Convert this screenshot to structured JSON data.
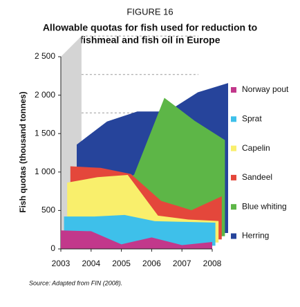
{
  "chart_data": {
    "type": "area3d",
    "figure_label": "FIGURE 16",
    "title": [
      "Allowable quotas for fish used for reduction to",
      "fishmeal and fish oil in Europe"
    ],
    "y_label": "Fish quotas (thousand tonnes)",
    "source": "Source: Adapted from FIN (2008).",
    "x": [
      2003,
      2004,
      2005,
      2006,
      2007,
      2008
    ],
    "xlim": [
      2003,
      2008
    ],
    "xticks": [
      2003,
      2004,
      2005,
      2006,
      2007,
      2008
    ],
    "ylim": [
      0,
      2500
    ],
    "yticks": [
      0,
      500,
      {
        "value": 1000,
        "label": "1 000"
      },
      {
        "value": 1500,
        "label": "1 500"
      },
      {
        "value": 2000,
        "label": "2 000"
      },
      {
        "value": 2500,
        "label": "2 500"
      }
    ],
    "grid": true,
    "legend": "right",
    "series": [
      {
        "name": "Norway pout",
        "color": "#c2388b",
        "values": [
          240,
          230,
          60,
          150,
          50,
          90
        ]
      },
      {
        "name": "Sprat",
        "color": "#3ec0ea",
        "values": [
          380,
          380,
          400,
          320,
          310,
          300
        ]
      },
      {
        "name": "Capelin",
        "color": "#f9ef6c",
        "values": [
          780,
          850,
          880,
          350,
          300,
          280
        ]
      },
      {
        "name": "Sandeel",
        "color": "#e4473b",
        "values": [
          950,
          930,
          850,
          500,
          380,
          560
        ]
      },
      {
        "name": "Blue whiting",
        "color": "#5db647",
        "values": [
          500,
          600,
          800,
          1800,
          1500,
          1250
        ]
      },
      {
        "name": "Herring",
        "color": "#26449b",
        "values": [
          1150,
          1450,
          1580,
          1580,
          1830,
          1950
        ]
      }
    ]
  }
}
